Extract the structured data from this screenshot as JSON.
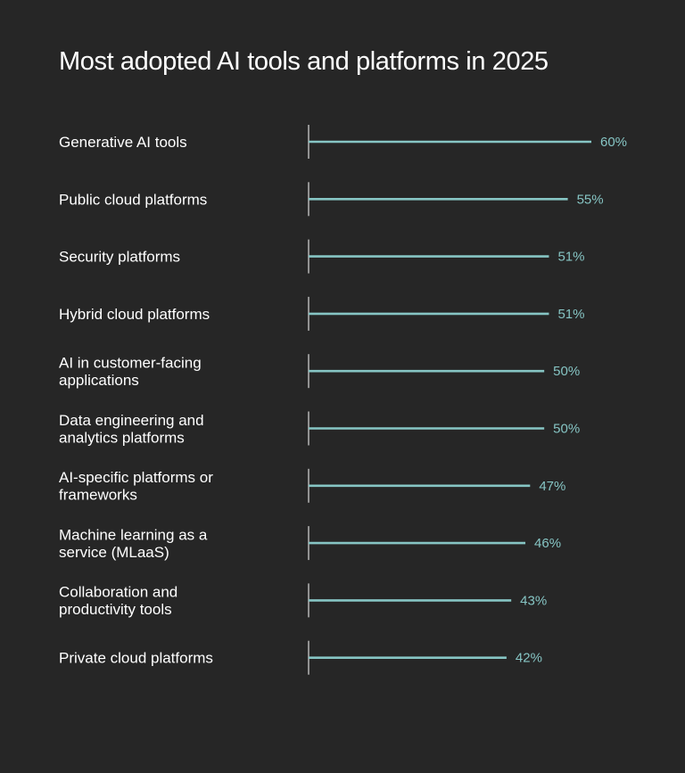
{
  "chart_data": {
    "type": "bar",
    "orientation": "horizontal",
    "title": "Most adopted AI tools and platforms in 2025",
    "categories": [
      [
        "Generative AI tools"
      ],
      [
        "Public cloud platforms"
      ],
      [
        "Security platforms"
      ],
      [
        "Hybrid cloud platforms"
      ],
      [
        "AI in customer-facing",
        "applications"
      ],
      [
        "Data engineering and",
        "analytics platforms"
      ],
      [
        "AI-specific platforms or",
        "frameworks"
      ],
      [
        "Machine learning as a",
        "service (MLaaS)"
      ],
      [
        "Collaboration and",
        "productivity tools"
      ],
      [
        "Private cloud platforms"
      ]
    ],
    "values": [
      60,
      55,
      51,
      51,
      50,
      50,
      47,
      46,
      43,
      42
    ],
    "value_labels": [
      "60%",
      "55%",
      "51%",
      "51%",
      "50%",
      "50%",
      "47%",
      "46%",
      "43%",
      "42%"
    ],
    "unit": "%",
    "xlim": [
      0,
      60
    ],
    "grid": false,
    "legend": "none"
  },
  "colors": {
    "background": "#262626",
    "bar": "#86c5c4",
    "value_text": "#86c5c4",
    "label_text": "#ffffff",
    "axis": "#d9d9d9"
  }
}
